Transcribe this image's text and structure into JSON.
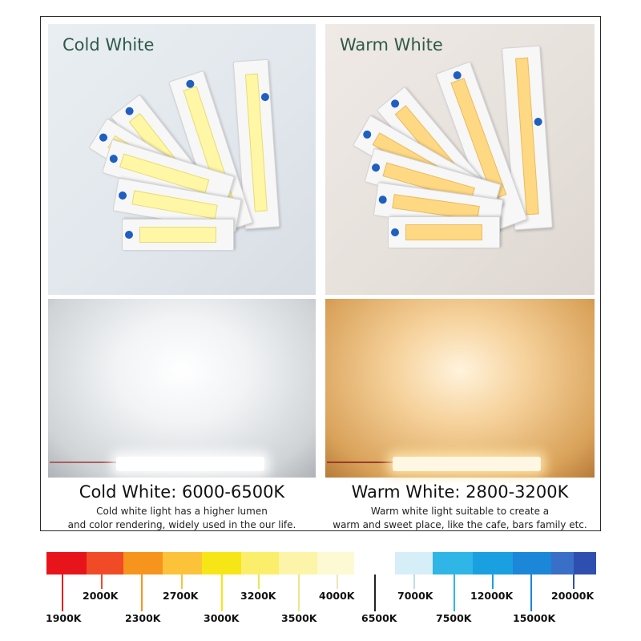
{
  "panels": {
    "cold": {
      "photo_label": "Cold White",
      "heading": "Cold White: 6000-6500K",
      "desc_line1": "Cold white light has a higher lumen",
      "desc_line2": "and color rendering, widely used in the our life."
    },
    "warm": {
      "photo_label": "Warm White",
      "heading": "Warm White: 2800-3200K",
      "desc_line1": "Warm white light suitable to create a",
      "desc_line2": "warm and sweet place, like the cafe, bars family etc."
    }
  },
  "scale": {
    "warm_swatches": [
      {
        "color": "#e8141c"
      },
      {
        "color": "#f04a26"
      },
      {
        "color": "#f7941d"
      },
      {
        "color": "#fbc23a"
      },
      {
        "color": "#f6e617"
      },
      {
        "color": "#fbee6a"
      },
      {
        "color": "#fcf4a8"
      },
      {
        "color": "#fdf9d2"
      }
    ],
    "cool_swatches": [
      {
        "color": "#d6eef8"
      },
      {
        "color": "#2fb6e6"
      },
      {
        "color": "#1aa0e0"
      },
      {
        "color": "#1c86d8"
      },
      {
        "color": "#3a6fc8"
      },
      {
        "color": "#2f4fb0"
      }
    ],
    "labels": {
      "k1900": "1900K",
      "k2000": "2000K",
      "k2300": "2300K",
      "k2700": "2700K",
      "k3000": "3000K",
      "k3200": "3200K",
      "k3500": "3500K",
      "k4000": "4000K",
      "k6500": "6500K",
      "k7000": "7000K",
      "k7500": "7500K",
      "k12000": "12000K",
      "k15000": "15000K",
      "k20000": "20000K"
    }
  }
}
